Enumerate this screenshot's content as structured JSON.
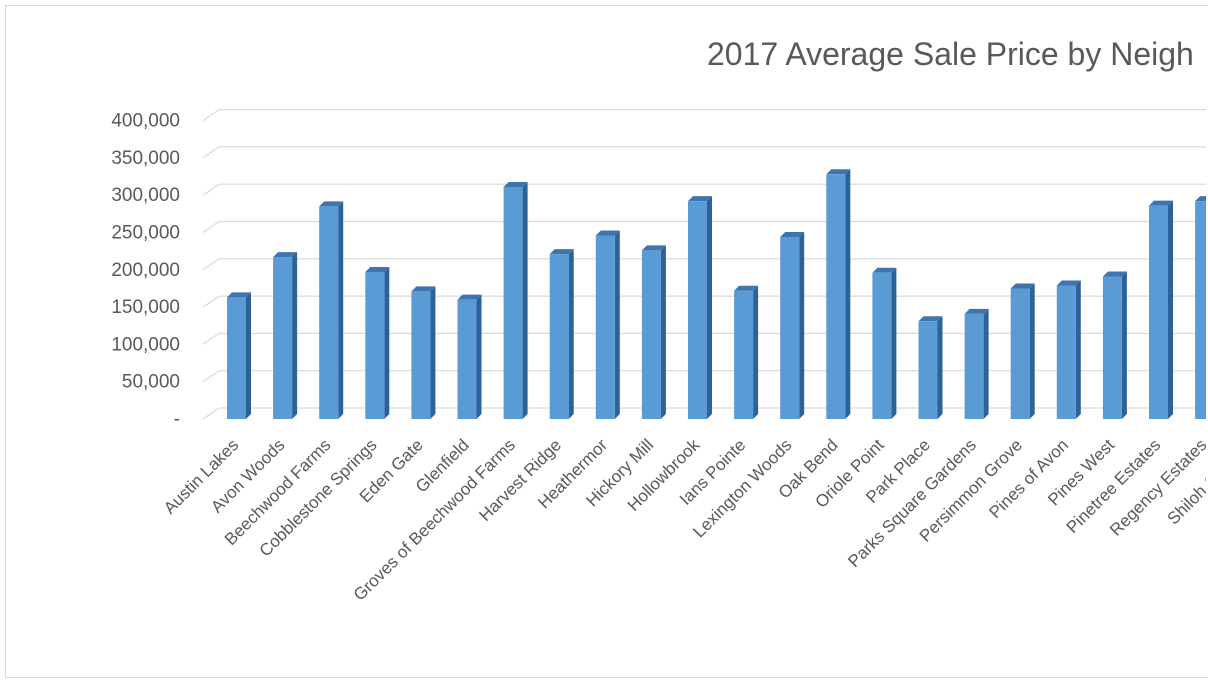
{
  "chart_data": {
    "type": "bar",
    "title": "2017 Average Sale Price by Neigh",
    "xlabel": "",
    "ylabel": "",
    "ylim": [
      0,
      400000
    ],
    "y_ticks": [
      "-",
      "50,000",
      "100,000",
      "150,000",
      "200,000",
      "250,000",
      "300,000",
      "350,000",
      "400,000"
    ],
    "grid": true,
    "bar_style": "3d-column",
    "colors": {
      "bar_front": "#5b9bd5",
      "bar_side": "#2e6197",
      "bar_top": "#3f75ad",
      "grid": "#d9d9d9",
      "text": "#595959"
    },
    "categories": [
      "Austin Lakes",
      "Avon Woods",
      "Beechwood Farms",
      "Cobblestone Springs",
      "Eden Gate",
      "Glenfield",
      "Groves of Beechwood Farms",
      "Harvest Ridge",
      "Heathermor",
      "Hickory Mill",
      "Hollowbrook",
      "Ians Pointe",
      "Lexington Woods",
      "Oak Bend",
      "Oriole Point",
      "Park Place",
      "Parks Square Gardens",
      "Persimmon Grove",
      "Pines of Avon",
      "Pines West",
      "Pinetree Estates",
      "Regency Estates",
      "Shiloh Creek F"
    ],
    "values": [
      163000,
      217000,
      285000,
      197000,
      171000,
      160000,
      311000,
      221000,
      246000,
      226000,
      292000,
      172000,
      244000,
      328000,
      196000,
      131000,
      141000,
      175000,
      179000,
      191000,
      286000,
      292000,
      292000
    ]
  }
}
